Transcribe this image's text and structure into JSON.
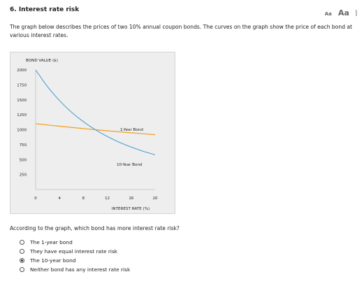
{
  "question": {
    "title": "6. Interest rate risk",
    "intro": "The graph below describes the prices of two 10% annual coupon bonds. The curves on the graph show the price of each bond at various interest rates.",
    "prompt": "According to the graph, which bond has more interest rate risk?"
  },
  "font_controls": {
    "small": "Aa",
    "large": "Aa"
  },
  "chart_data": {
    "type": "line",
    "ylabel": "BOND VALUE ($)",
    "xlabel": "INTEREST RATE (%)",
    "xlim": [
      0,
      20
    ],
    "ylim": [
      0,
      2000
    ],
    "x_ticks": [
      "0",
      "4",
      "8",
      "12",
      "16",
      "20"
    ],
    "y_ticks": [
      "2000",
      "1750",
      "1500",
      "1250",
      "1000",
      "750",
      "500",
      "250"
    ],
    "series": [
      {
        "name": "1-Year Bond",
        "color": "#f0a020",
        "x": [
          0,
          4,
          8,
          12,
          16,
          20
        ],
        "values": [
          1100,
          1058,
          1019,
          982,
          948,
          917
        ]
      },
      {
        "name": "10-Year Bond",
        "color": "#5aa6d6",
        "x": [
          0,
          2,
          4,
          6,
          8,
          10,
          12,
          14,
          16,
          18,
          20
        ],
        "values": [
          2000,
          1719,
          1487,
          1294,
          1134,
          1000,
          887,
          791,
          710,
          640,
          581
        ]
      }
    ]
  },
  "options": [
    {
      "label": "The 1-year bond",
      "selected": false
    },
    {
      "label": "They have equal interest rate risk",
      "selected": false
    },
    {
      "label": "The 10-year bond",
      "selected": true
    },
    {
      "label": "Neither bond has any interest rate risk",
      "selected": false
    }
  ]
}
